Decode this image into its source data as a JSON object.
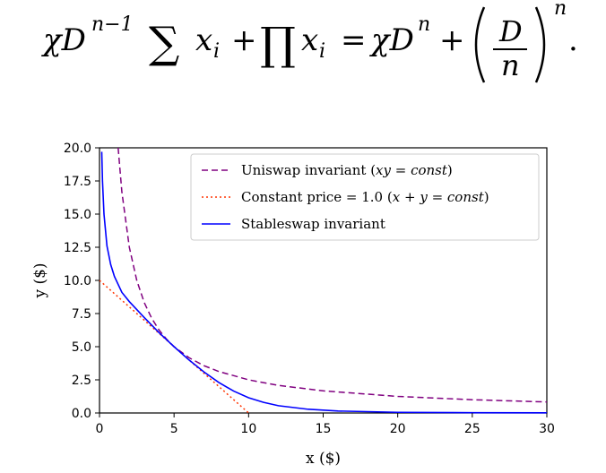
{
  "equation": {
    "chi_d_prefix": "χD",
    "exp_n_minus_1": "n−1",
    "sum_symbol": "∑",
    "x_i_1": "x",
    "sub_i_1": "i",
    "plus": "+",
    "prod_symbol": "∏",
    "x_i_2": "x",
    "sub_i_2": "i",
    "equals": "=",
    "chi_d_rhs": "χD",
    "exp_n": "n",
    "plus2": "+",
    "frac_num": "D",
    "frac_den": "n",
    "outer_exp": "n",
    "period": "."
  },
  "chart_data": {
    "type": "line",
    "xlabel": "x ($)",
    "ylabel": "y ($)",
    "xlim": [
      0,
      30
    ],
    "ylim": [
      0,
      20
    ],
    "xticks": [
      "0",
      "5",
      "10",
      "15",
      "20",
      "25",
      "30"
    ],
    "yticks": [
      "0.0",
      "2.5",
      "5.0",
      "7.5",
      "10.0",
      "12.5",
      "15.0",
      "17.5",
      "20.0"
    ],
    "grid": false,
    "legend_position": "top-right",
    "series": [
      {
        "name": "Uniswap invariant (xy = const)",
        "name_parts": [
          "Uniswap invariant (",
          "xy",
          " = ",
          "const",
          ")"
        ],
        "style": "dashed",
        "color": "#800080",
        "x": [
          1.25,
          1.5,
          2,
          2.5,
          3,
          3.5,
          4,
          4.5,
          5,
          6,
          7,
          8,
          10,
          12,
          15,
          20,
          25,
          30
        ],
        "y": [
          20,
          16.67,
          12.5,
          10,
          8.33,
          7.14,
          6.25,
          5.56,
          5,
          4.17,
          3.57,
          3.13,
          2.5,
          2.08,
          1.67,
          1.25,
          1,
          0.83
        ]
      },
      {
        "name": "Constant price = 1.0 (x + y = const)",
        "name_parts": [
          "Constant price = 1.0 (",
          "x",
          " + ",
          "y",
          " = ",
          "const",
          ")"
        ],
        "style": "dotted",
        "color": "#ff3300",
        "x": [
          0,
          10
        ],
        "y": [
          10,
          0
        ]
      },
      {
        "name": "Stableswap invariant",
        "name_parts": [
          "Stableswap invariant"
        ],
        "style": "solid",
        "color": "#0000ff",
        "x": [
          0.15,
          0.2,
          0.3,
          0.5,
          0.75,
          1,
          1.5,
          2,
          3,
          4,
          5,
          6,
          7,
          8,
          9,
          10,
          11,
          12,
          14,
          16,
          20,
          25,
          30
        ],
        "y": [
          19.7,
          17.5,
          15,
          12.6,
          11.2,
          10.3,
          9.1,
          8.4,
          7.2,
          6.05,
          5.0,
          4.0,
          3.1,
          2.3,
          1.65,
          1.15,
          0.8,
          0.55,
          0.28,
          0.15,
          0.05,
          0.02,
          0.01
        ]
      }
    ]
  },
  "colors": {
    "axes": "#000000",
    "background": "#ffffff",
    "legend_border": "#cccccc"
  }
}
